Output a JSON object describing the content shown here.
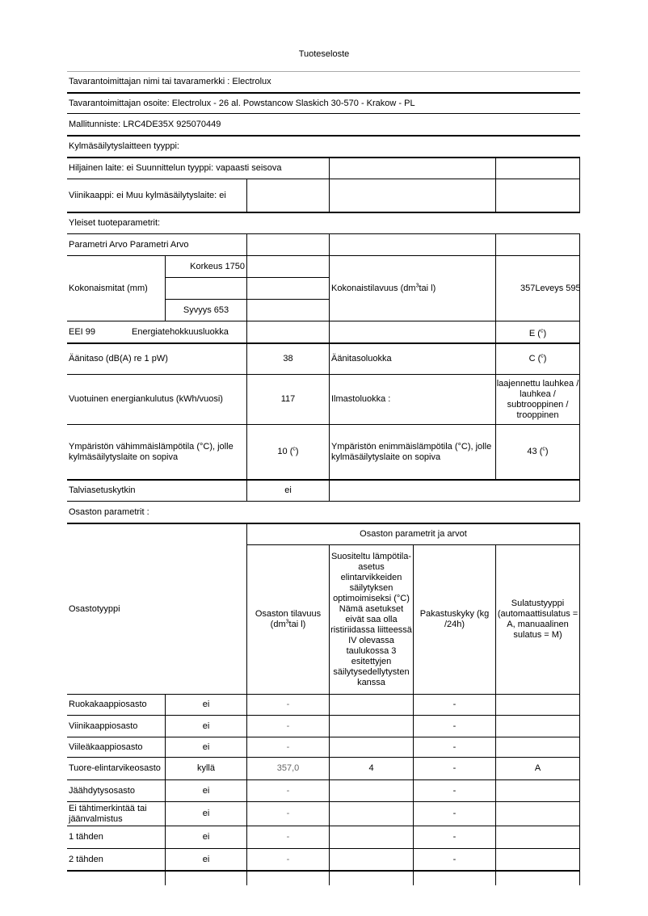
{
  "title": "Tuoteseloste",
  "header": {
    "supplier": "Tavarantoimittajan nimi tai tavaramerkki : Electrolux",
    "address": "Tavarantoimittajan osoite: Electrolux - 26 al. Powstancow Slaskich 30-570 - Krakow - PL",
    "model": "Mallitunniste: LRC4DE35X 925070449",
    "type_heading": "Kylmäsäilytyslaitteen tyyppi:",
    "quiet": "Hiljainen laite: ei Suunnittelun tyyppi: vapaasti seisova",
    "wine": "Viinikaappi: ei Muu kylmäsäilytyslaite: ei"
  },
  "general": {
    "heading": "Yleiset tuoteparametrit:",
    "param_header": "Parametri Arvo Parametri Arvo",
    "dimensions_label": "Kokonaismitat (mm)",
    "height": "Korkeus 1750",
    "depth": "Syvyys 653",
    "total_volume_label": {
      "pre": "Kokonaistilavuus (dm",
      "sup": "3",
      "post": "tai l)"
    },
    "total_volume_value": "357Leveys 595",
    "eei": "EEI 99",
    "energy_class_label": "Energiatehokkuusluokka",
    "energy_class_value": {
      "main": "E (",
      "sup": "c",
      "post": ")"
    },
    "noise_label": "Äänitaso (dB(A) re 1 pW)",
    "noise_value": "38",
    "noise_class_label": "Äänitasoluokka",
    "noise_class_value": {
      "main": "C (",
      "sup": "c",
      "post": ")"
    },
    "annual_energy_label": "Vuotuinen energiankulutus (kWh/vuosi)",
    "annual_energy_value": "117",
    "climate_label": "Ilmastoluokka :",
    "climate_value": "laajennettu lauhkea / lauhkea / subtrooppinen / trooppinen",
    "min_temp_label": "Ympäristön vähimmäislämpötila (°C), jolle kylmäsäilytyslaite on sopiva",
    "min_temp_value": {
      "main": "10 (",
      "sup": "c",
      "post": ")"
    },
    "max_temp_label": "Ympäristön enimmäislämpötila (°C), jolle kylmäsäilytyslaite on sopiva",
    "max_temp_value": {
      "main": "43 (",
      "sup": "c",
      "post": ")"
    },
    "winter_label": "Talviasetuskytkin",
    "winter_value": "ei"
  },
  "compartments": {
    "heading": "Osaston parametrit :",
    "type_header": "Osastotyyppi",
    "group_header": "Osaston parametrit ja arvot",
    "volume_header": {
      "pre": "Osaston tilavuus (dm",
      "sup": "3",
      "post": "tai l)"
    },
    "temp_header": "Suositeltu lämpötila-asetus elintarvikkeiden säilytyksen optimoimiseksi (°C) Nämä asetukset eivät saa olla ristiriidassa liitteessä IV olevassa taulukossa 3 esitettyjen säilytysedellytysten kanssa",
    "freeze_header": "Pakastuskyky (kg /24h)",
    "defrost_header": "Sulatustyyppi (automaattisulatus = A, manuaalinen sulatus = M)",
    "rows": [
      {
        "type": "Ruokakaappiosasto",
        "present": "ei",
        "volume": "-",
        "temp": "",
        "freeze": "-",
        "defrost": ""
      },
      {
        "type": "Viinikaappiosasto",
        "present": "ei",
        "volume": "-",
        "temp": "",
        "freeze": "-",
        "defrost": ""
      },
      {
        "type": "Viileäkaappiosasto",
        "present": "ei",
        "volume": "-",
        "temp": "",
        "freeze": "-",
        "defrost": ""
      },
      {
        "type": "Tuore-elintarvikeosasto",
        "present": "kyllä",
        "volume": "357,0",
        "temp": "4",
        "freeze": "-",
        "defrost": "A"
      },
      {
        "type": "Jäähdytysosasto",
        "present": "ei",
        "volume": "-",
        "temp": "",
        "freeze": "-",
        "defrost": ""
      },
      {
        "type": "Ei tähtimerkintää tai jäänvalmistus",
        "present": "ei",
        "volume": "-",
        "temp": "",
        "freeze": "-",
        "defrost": ""
      },
      {
        "type": "1 tähden",
        "present": "ei",
        "volume": "-",
        "temp": "",
        "freeze": "-",
        "defrost": ""
      },
      {
        "type": "2 tähden",
        "present": "ei",
        "volume": "-",
        "temp": "",
        "freeze": "-",
        "defrost": ""
      }
    ]
  }
}
